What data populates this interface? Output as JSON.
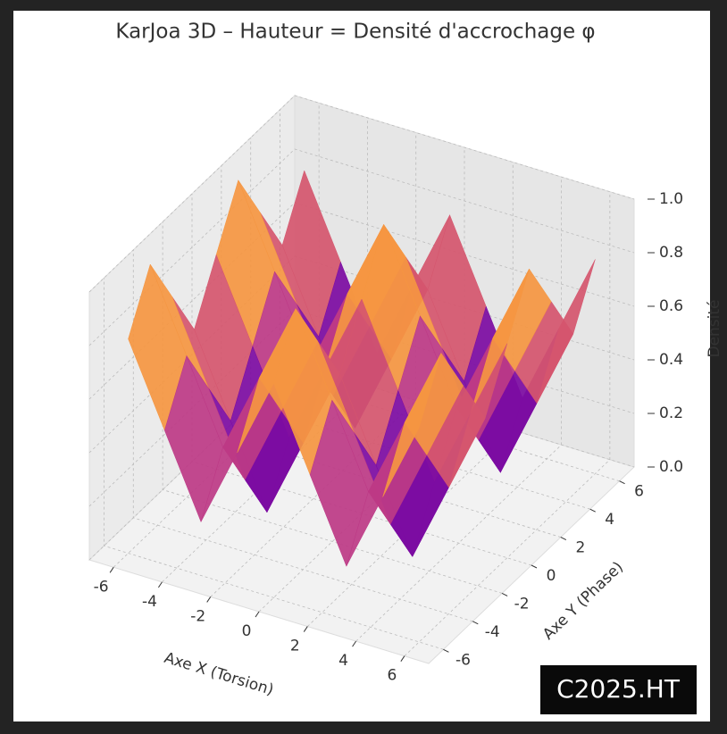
{
  "chart_data": {
    "type": "surface",
    "title": "KarJoa 3D – Hauteur = Densité d'accrochage φ",
    "x_label": "Axe X (Torsion)",
    "y_label": "Axe Y (Phase)",
    "z_label": "Densité",
    "x": [
      -6,
      -4.5,
      -3,
      -1.5,
      0,
      1.5,
      3,
      4.5,
      6
    ],
    "y": [
      -6,
      -4.5,
      -3,
      -1.5,
      0,
      1.5,
      3,
      4.5,
      6
    ],
    "z": [
      [
        0.8,
        1.0,
        0.8,
        0.6,
        0.8,
        1.0,
        0.8,
        0.6,
        0.8
      ],
      [
        0.5,
        0.7,
        0.5,
        0.3,
        0.5,
        0.7,
        0.5,
        0.3,
        0.5
      ],
      [
        0.2,
        0.4,
        0.2,
        0.0,
        0.2,
        0.4,
        0.2,
        0.0,
        0.2
      ],
      [
        0.5,
        0.7,
        0.5,
        0.3,
        0.5,
        0.7,
        0.5,
        0.3,
        0.5
      ],
      [
        0.8,
        1.0,
        0.8,
        0.6,
        0.8,
        1.0,
        0.8,
        0.6,
        0.8
      ],
      [
        0.5,
        0.7,
        0.5,
        0.3,
        0.5,
        0.7,
        0.5,
        0.3,
        0.5
      ],
      [
        0.2,
        0.4,
        0.2,
        0.0,
        0.2,
        0.4,
        0.2,
        0.0,
        0.2
      ],
      [
        0.5,
        0.7,
        0.5,
        0.3,
        0.5,
        0.7,
        0.5,
        0.3,
        0.5
      ],
      [
        0.8,
        1.0,
        0.8,
        0.6,
        0.8,
        1.0,
        0.8,
        0.6,
        0.8
      ]
    ],
    "colormap": "plasma",
    "xlim": [
      -7,
      7
    ],
    "ylim": [
      -7,
      7
    ],
    "zlim": [
      0,
      1
    ],
    "xticks": [
      -6,
      -4,
      -2,
      0,
      2,
      4,
      6
    ],
    "yticks": [
      -6,
      -4,
      -2,
      0,
      2,
      4,
      6
    ],
    "zticks": [
      {
        "value": 0,
        "label": "0.0"
      },
      {
        "value": 0.2,
        "label": "0.2"
      },
      {
        "value": 0.4,
        "label": "0.4"
      },
      {
        "value": 0.6,
        "label": "0.6"
      },
      {
        "value": 0.8,
        "label": "0.8"
      },
      {
        "value": 1,
        "label": "1.0"
      }
    ],
    "grid": true,
    "watermark": "C2025.HT"
  }
}
